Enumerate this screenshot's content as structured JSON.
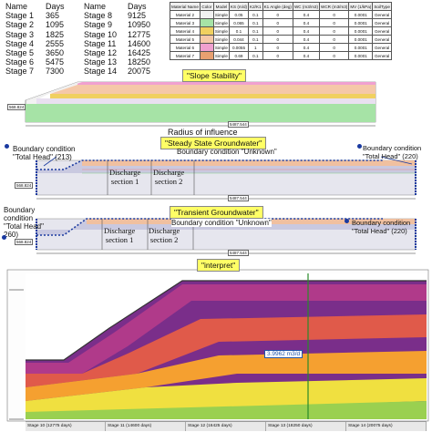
{
  "stage_table": {
    "headers": [
      "Name",
      "Days",
      "Name",
      "Days"
    ],
    "rows": [
      [
        "Stage 1",
        "365",
        "Stage 8",
        "9125"
      ],
      [
        "Stage 2",
        "1095",
        "Stage 9",
        "10950"
      ],
      [
        "Stage 3",
        "1825",
        "Stage 10",
        "12775"
      ],
      [
        "Stage 4",
        "2555",
        "Stage 11",
        "14600"
      ],
      [
        "Stage 5",
        "3650",
        "Stage 12",
        "16425"
      ],
      [
        "Stage 6",
        "5475",
        "Stage 13",
        "18250"
      ],
      [
        "Stage 7",
        "7300",
        "Stage 14",
        "20075"
      ]
    ]
  },
  "material_table": {
    "headers": [
      "Material Name",
      "Color",
      "Model",
      "KS (m/d)",
      "K2/K1",
      "K1 Angle (deg)",
      "WC (m3/m3)",
      "WCR (m3/m3)",
      "MV (1/kPa)",
      "SoilType"
    ],
    "rows": [
      {
        "name": "Material 2",
        "color": "#f2f2f2",
        "model": "Simple",
        "ks": "0.05",
        "k2k1": "0.1",
        "angle": "0",
        "wc": "0.4",
        "wcr": "0",
        "mv": "0.0001",
        "soil": "General"
      },
      {
        "name": "Material 3",
        "color": "#a6e3a6",
        "model": "Simple",
        "ks": "0.065",
        "k2k1": "0.1",
        "angle": "0",
        "wc": "0.4",
        "wcr": "0",
        "mv": "0.0001",
        "soil": "General"
      },
      {
        "name": "Material 4",
        "color": "#f0d060",
        "model": "Simple",
        "ks": "0.1",
        "k2k1": "0.1",
        "angle": "0",
        "wc": "0.4",
        "wcr": "0",
        "mv": "0.0001",
        "soil": "General"
      },
      {
        "name": "Material 5",
        "color": "#f5c8a8",
        "model": "Simple",
        "ks": "0.044",
        "k2k1": "0.1",
        "angle": "0",
        "wc": "0.4",
        "wcr": "0",
        "mv": "0.0001",
        "soil": "General"
      },
      {
        "name": "Material 6",
        "color": "#f0a0d0",
        "model": "Simple",
        "ks": "0.0055",
        "k2k1": "1",
        "angle": "0",
        "wc": "0.4",
        "wcr": "0",
        "mv": "0.0001",
        "soil": "General"
      },
      {
        "name": "Material 7",
        "color": "#e8a070",
        "model": "Simple",
        "ks": "0.69",
        "k2k1": "0.1",
        "angle": "0",
        "wc": "0.4",
        "wcr": "0",
        "mv": "0.0001",
        "soil": "General"
      }
    ]
  },
  "slope_section": {
    "banner": "\"Slope Stability\"",
    "dim_left": "568.824",
    "dim_bottom": "5487.544",
    "caption": "Radius of influence"
  },
  "steady_section": {
    "banner": "\"Steady State Groundwater\"",
    "bc_left": "Boundary condition\n\"Total Head\" (213)",
    "bc_unknown": "Boundary condition \"Unknown\"",
    "bc_right": "Boundary condition\n\"Total Head\" (220)",
    "discharge1": "Discharge\nsection 1",
    "discharge2": "Discharge\nsection 2",
    "dim_left": "568.824",
    "dim_bottom": "5487.544"
  },
  "transient_section": {
    "banner": "\"Transient Groundwater\"",
    "bc_left": "Boundary\ncondition\n\"Total Head\"\n260)",
    "bc_unknown": "Boundary condition \"Unknown\"",
    "bc_right": "Boundary condition\n\"Total Head\" (220)",
    "discharge1": "Discharge\nsection 1",
    "discharge2": "Discharge\nsection 2",
    "dim_left": "568.824",
    "dim_bottom": "5487.544"
  },
  "interpret_section": {
    "banner": "\"interpret\"",
    "flux_label": "3.9962 m3/d",
    "tabs": [
      "Stage 10 (12775 days)",
      "Stage 11 (14600 days)",
      "Stage 12 (16425 days)",
      "Stage 13 (18250 days)",
      "Stage 14 (20075 days)"
    ]
  },
  "colors": {
    "banner": "#ffff66",
    "layer_pink": "#f0a0d0",
    "layer_orange": "#f5c8a8",
    "layer_yellow": "#f0d060",
    "layer_green": "#a6e3a6",
    "boundary_blue": "#1a3aa0"
  }
}
